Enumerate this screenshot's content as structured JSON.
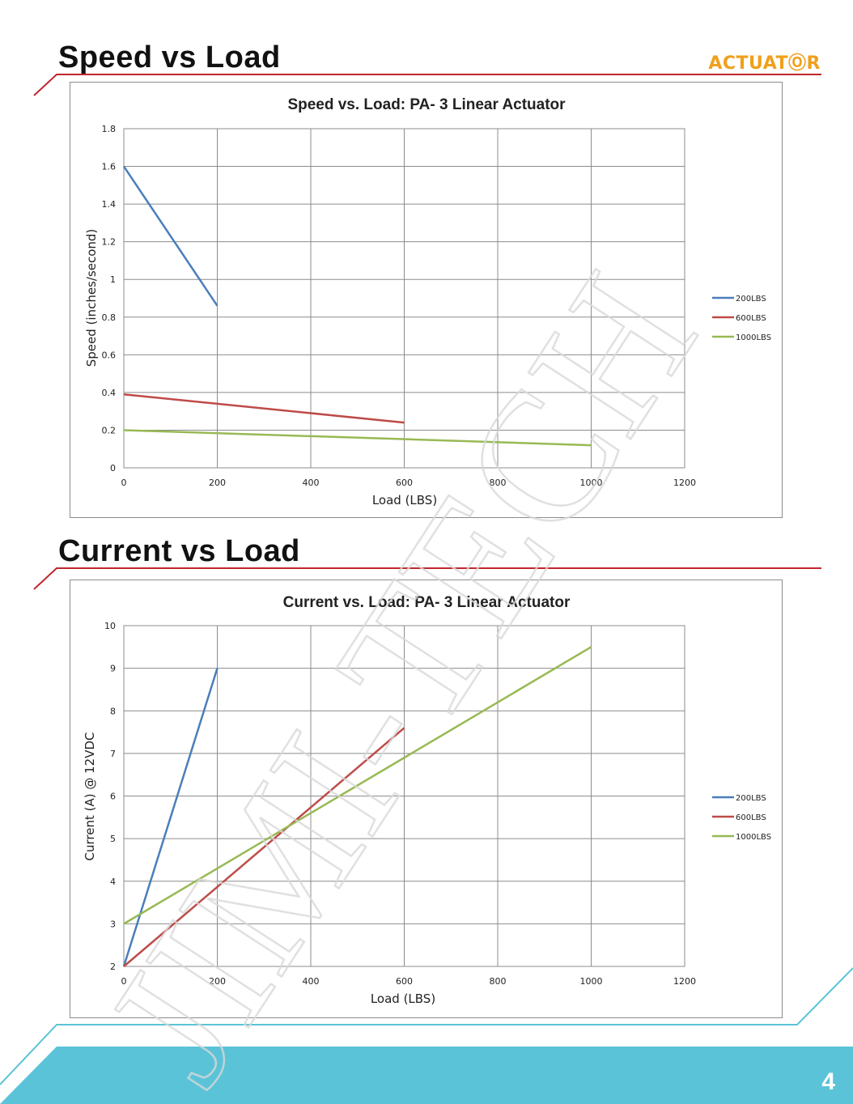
{
  "page": {
    "section1_title": "Speed vs Load",
    "section2_title": "Current vs Load",
    "logo_text": "ACTUATⓄR",
    "page_number": "4",
    "watermark_text": "JIMI-TECH",
    "colors": {
      "rule": "#c0272d",
      "footer": "#5bc3d8",
      "logo": "#f0a01c"
    }
  },
  "chart_data": [
    {
      "type": "line",
      "title": "Speed vs. Load: PA-  3 Linear Actuator",
      "xlabel": "Load (LBS)",
      "ylabel": "Speed (inches/second)",
      "xlim": [
        0,
        1200
      ],
      "ylim": [
        0,
        1.8
      ],
      "x_ticks": [
        "0",
        "200",
        "400",
        "600",
        "800",
        "1000",
        "1200"
      ],
      "y_ticks": [
        "0",
        "0.2",
        "0.4",
        "0.6",
        "0.8",
        "1",
        "1.2",
        "1.4",
        "1.6",
        "1.8"
      ],
      "grid": true,
      "legend_position": "right",
      "series": [
        {
          "name": "200LBS",
          "color": "#4a7ebb",
          "points": [
            [
              0,
              1.6
            ],
            [
              200,
              0.86
            ]
          ]
        },
        {
          "name": "600LBS",
          "color": "#be4b48",
          "points": [
            [
              0,
              0.39
            ],
            [
              600,
              0.24
            ]
          ]
        },
        {
          "name": "1000LBS",
          "color": "#98b954",
          "points": [
            [
              0,
              0.2
            ],
            [
              1000,
              0.12
            ]
          ]
        }
      ]
    },
    {
      "type": "line",
      "title": "Current vs. Load: PA-  3 Linear Actuator",
      "xlabel": "Load (LBS)",
      "ylabel": "Current (A) @ 12VDC",
      "xlim": [
        0,
        1200
      ],
      "ylim": [
        2,
        10
      ],
      "x_ticks": [
        "0",
        "200",
        "400",
        "600",
        "800",
        "1000",
        "1200"
      ],
      "y_ticks": [
        "2",
        "3",
        "4",
        "5",
        "6",
        "7",
        "8",
        "9",
        "10"
      ],
      "grid": true,
      "legend_position": "right",
      "series": [
        {
          "name": "200LBS",
          "color": "#4a7ebb",
          "points": [
            [
              0,
              2
            ],
            [
              200,
              9
            ]
          ]
        },
        {
          "name": "600LBS",
          "color": "#be4b48",
          "points": [
            [
              0,
              2
            ],
            [
              600,
              7.6
            ]
          ]
        },
        {
          "name": "1000LBS",
          "color": "#98b954",
          "points": [
            [
              0,
              3
            ],
            [
              1000,
              9.5
            ]
          ]
        }
      ]
    }
  ]
}
